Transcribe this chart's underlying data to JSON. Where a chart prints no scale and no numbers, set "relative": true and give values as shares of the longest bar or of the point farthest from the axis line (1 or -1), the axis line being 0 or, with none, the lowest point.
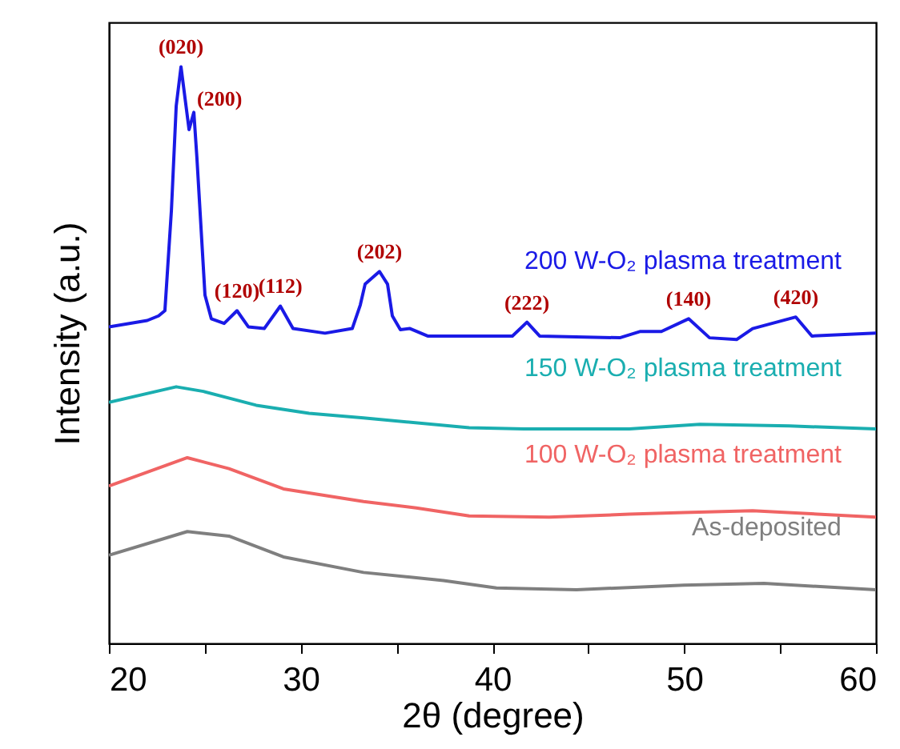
{
  "chart_data": {
    "type": "line",
    "relative": true,
    "xlabel": "2θ (degree)",
    "ylabel": "Intensity (a.u.)",
    "xlim": [
      20,
      60
    ],
    "xticks": [
      20,
      {
        "value": 25,
        "label": null
      },
      30,
      {
        "value": 35,
        "label": null
      },
      40,
      {
        "value": 45,
        "label": null
      },
      50,
      {
        "value": 55,
        "label": null
      },
      60
    ],
    "series": [
      {
        "name": "200 W-O₂ plasma treatment",
        "color": "#1a1ae6",
        "x": [
          20,
          22,
          22.59,
          22.92,
          23.26,
          23.51,
          23.76,
          24.18,
          24.43,
          24.59,
          25.01,
          25.34,
          26.01,
          26.68,
          27.27,
          28.1,
          28.94,
          29.6,
          31.27,
          32.69,
          33.11,
          33.36,
          34.11,
          34.53,
          34.78,
          35.2,
          35.7,
          36.62,
          41.04,
          41.8,
          42.46,
          46.64,
          47.72,
          48.81,
          50.23,
          51.32,
          52.73,
          53.57,
          55.82,
          56.66,
          60
        ],
        "values": [
          0.549,
          0.56,
          0.568,
          0.577,
          0.751,
          0.932,
          1.0,
          0.891,
          0.921,
          0.842,
          0.604,
          0.563,
          0.555,
          0.577,
          0.549,
          0.546,
          0.585,
          0.546,
          0.538,
          0.546,
          0.587,
          0.623,
          0.645,
          0.623,
          0.568,
          0.544,
          0.546,
          0.533,
          0.533,
          0.557,
          0.533,
          0.53,
          0.541,
          0.541,
          0.563,
          0.53,
          0.527,
          0.546,
          0.566,
          0.533,
          0.538
        ]
      },
      {
        "name": "150 W-O₂ plasma treatment",
        "color": "#1aaeb0",
        "x": [
          20,
          23.51,
          24.93,
          27.68,
          30.44,
          33.28,
          38.79,
          41.63,
          47.14,
          50.81,
          55.49,
          60
        ],
        "values": [
          0.418,
          0.445,
          0.437,
          0.413,
          0.399,
          0.391,
          0.374,
          0.372,
          0.372,
          0.38,
          0.377,
          0.372
        ]
      },
      {
        "name": "100 W-O₂ plasma treatment",
        "color": "#f06464",
        "x": [
          20,
          24.09,
          26.26,
          29.1,
          33.28,
          36.03,
          38.79,
          42.96,
          47.14,
          49.98,
          53.57,
          60
        ],
        "values": [
          0.273,
          0.322,
          0.303,
          0.268,
          0.246,
          0.235,
          0.221,
          0.219,
          0.224,
          0.227,
          0.23,
          0.219
        ]
      },
      {
        "name": "As-deposited",
        "color": "#7f7f7f",
        "x": [
          20,
          24.09,
          26.26,
          29.1,
          33.28,
          37.45,
          40.21,
          44.38,
          49.98,
          54.16,
          60
        ],
        "values": [
          0.153,
          0.194,
          0.186,
          0.15,
          0.123,
          0.109,
          0.096,
          0.093,
          0.101,
          0.104,
          0.093
        ]
      }
    ],
    "annotations": [
      {
        "text": "(020)",
        "x": 23.76,
        "y": 1.0
      },
      {
        "text": "(200)",
        "x": 24.43,
        "y": 0.921
      },
      {
        "text": "(120)",
        "x": 26.68,
        "y": 0.577
      },
      {
        "text": "(112)",
        "x": 28.94,
        "y": 0.585
      },
      {
        "text": "(202)",
        "x": 34.11,
        "y": 0.645
      },
      {
        "text": "(222)",
        "x": 41.8,
        "y": 0.557
      },
      {
        "text": "(140)",
        "x": 50.23,
        "y": 0.563
      },
      {
        "text": "(420)",
        "x": 55.82,
        "y": 0.566
      }
    ]
  }
}
